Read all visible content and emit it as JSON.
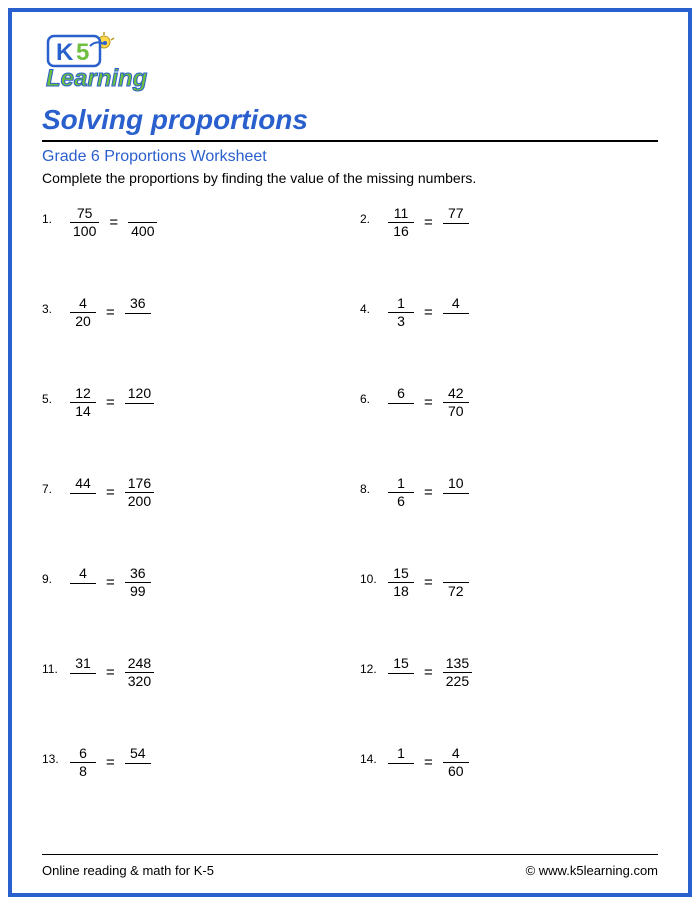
{
  "logo": {
    "text_k5": "K5",
    "text_learning": "Learning",
    "k_color": "#2a5fce",
    "five_color": "#6fbf3f",
    "learning_color": "#6fbf3f",
    "learning_outline": "#2a5fce"
  },
  "title": {
    "text": "Solving proportions",
    "color": "#2a5fce",
    "fontsize": 28
  },
  "subtitle": {
    "text": "Grade 6 Proportions Worksheet",
    "color": "#2a5fce",
    "fontsize": 16
  },
  "instruction": {
    "text": "Complete the proportions by finding the value of the missing numbers.",
    "color": "#000000",
    "fontsize": 14
  },
  "border_color": "#2a5fce",
  "problems": [
    {
      "n": "1.",
      "a_num": "75",
      "a_den": "100",
      "b_num": "",
      "b_den": "400"
    },
    {
      "n": "2.",
      "a_num": "11",
      "a_den": "16",
      "b_num": "77",
      "b_den": ""
    },
    {
      "n": "3.",
      "a_num": "4",
      "a_den": "20",
      "b_num": "36",
      "b_den": ""
    },
    {
      "n": "4.",
      "a_num": "1",
      "a_den": "3",
      "b_num": "4",
      "b_den": ""
    },
    {
      "n": "5.",
      "a_num": "12",
      "a_den": "14",
      "b_num": "120",
      "b_den": ""
    },
    {
      "n": "6.",
      "a_num": "6",
      "a_den": "",
      "b_num": "42",
      "b_den": "70"
    },
    {
      "n": "7.",
      "a_num": "44",
      "a_den": "",
      "b_num": "176",
      "b_den": "200"
    },
    {
      "n": "8.",
      "a_num": "1",
      "a_den": "6",
      "b_num": "10",
      "b_den": ""
    },
    {
      "n": "9.",
      "a_num": "4",
      "a_den": "",
      "b_num": "36",
      "b_den": "99"
    },
    {
      "n": "10.",
      "a_num": "15",
      "a_den": "18",
      "b_num": "",
      "b_den": "72"
    },
    {
      "n": "11.",
      "a_num": "31",
      "a_den": "",
      "b_num": "248",
      "b_den": "320"
    },
    {
      "n": "12.",
      "a_num": "15",
      "a_den": "",
      "b_num": "135",
      "b_den": "225"
    },
    {
      "n": "13.",
      "a_num": "6",
      "a_den": "8",
      "b_num": "54",
      "b_den": ""
    },
    {
      "n": "14.",
      "a_num": "1",
      "a_den": "",
      "b_num": "4",
      "b_den": "60"
    }
  ],
  "footer": {
    "left": "Online reading & math for K-5",
    "right": "© www.k5learning.com"
  }
}
